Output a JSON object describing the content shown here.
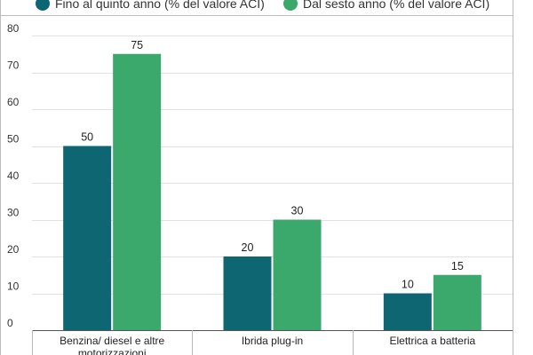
{
  "chart_data": {
    "type": "bar",
    "title": "",
    "xlabel": "",
    "ylabel": "",
    "categories": [
      "Benzina/ diesel e altre motorizzazioni",
      "Ibrida plug-in",
      "Elettrica a batteria"
    ],
    "series": [
      {
        "name": "Fino al quinto anno (% del valore ACI)",
        "color": "#0e6672",
        "values": [
          50,
          20,
          10
        ]
      },
      {
        "name": "Dal sesto anno (% del valore ACI)",
        "color": "#3aa96b",
        "values": [
          75,
          30,
          15
        ]
      }
    ],
    "ylim": [
      0,
      80
    ],
    "yticks": [
      0,
      10,
      20,
      30,
      40,
      50,
      60,
      70,
      80
    ],
    "grid": true,
    "legend_position": "top"
  }
}
